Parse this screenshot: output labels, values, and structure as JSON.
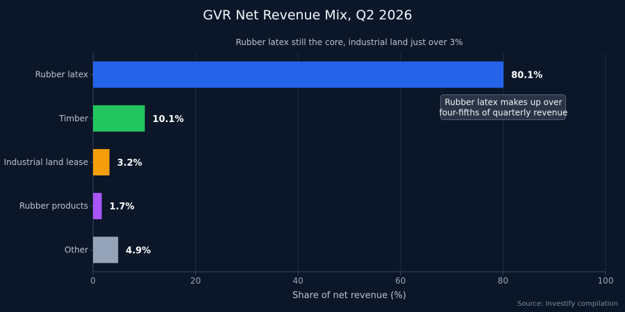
{
  "chart_data": {
    "type": "bar",
    "orientation": "horizontal",
    "title": "GVR Net Revenue Mix, Q2 2026",
    "subtitle": "Rubber latex still the core, industrial land just over 3%",
    "xlabel": "Share of net revenue (%)",
    "ylabel": "",
    "xlim": [
      0,
      100
    ],
    "xticks": [
      0,
      20,
      40,
      60,
      80,
      100
    ],
    "grid": true,
    "categories": [
      "Rubber latex",
      "Timber",
      "Industrial land lease",
      "Rubber products",
      "Other"
    ],
    "values": [
      80.1,
      10.1,
      3.2,
      1.7,
      4.9
    ],
    "value_labels": [
      "80.1%",
      "10.1%",
      "3.2%",
      "1.7%",
      "4.9%"
    ],
    "colors": [
      "#2563eb",
      "#22c55e",
      "#f59e0b",
      "#a855f7",
      "#94a3b8"
    ],
    "annotation": {
      "lines": [
        "Rubber latex makes up over",
        "four-fifths of quarterly revenue"
      ],
      "category": "Rubber latex",
      "x": 80
    },
    "source": "Source: Investify compilation"
  },
  "colors": {
    "background": "#0b1628",
    "grid": "#1f2c40",
    "axis": "#3a475a"
  }
}
